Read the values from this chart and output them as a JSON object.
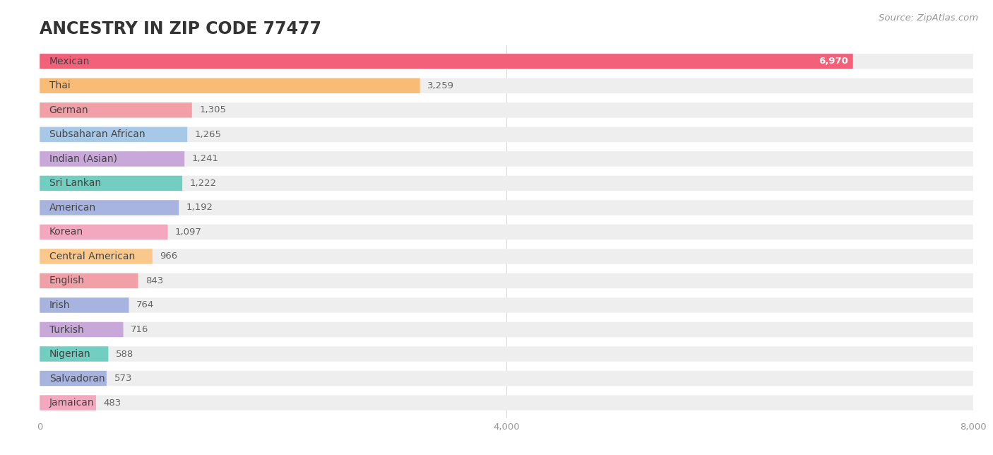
{
  "title": "ANCESTRY IN ZIP CODE 77477",
  "source": "Source: ZipAtlas.com",
  "categories": [
    "Mexican",
    "Thai",
    "German",
    "Subsaharan African",
    "Indian (Asian)",
    "Sri Lankan",
    "American",
    "Korean",
    "Central American",
    "English",
    "Irish",
    "Turkish",
    "Nigerian",
    "Salvadoran",
    "Jamaican"
  ],
  "values": [
    6970,
    3259,
    1305,
    1265,
    1241,
    1222,
    1192,
    1097,
    966,
    843,
    764,
    716,
    588,
    573,
    483
  ],
  "bar_colors": [
    "#f2607a",
    "#f9bc76",
    "#f2a0a8",
    "#a8c8e8",
    "#c8a8d8",
    "#72cec0",
    "#a8b4e0",
    "#f4a8c0",
    "#f9c88a",
    "#f2a0a8",
    "#a8b4e0",
    "#c8a8d8",
    "#72cec0",
    "#a8b4e0",
    "#f4a8c0"
  ],
  "bg_bar_color": "#eeeeee",
  "xlim": [
    0,
    8000
  ],
  "xticks": [
    0,
    4000,
    8000
  ],
  "background_color": "#ffffff",
  "title_fontsize": 17,
  "label_fontsize": 10,
  "value_fontsize": 9.5,
  "source_fontsize": 9.5
}
